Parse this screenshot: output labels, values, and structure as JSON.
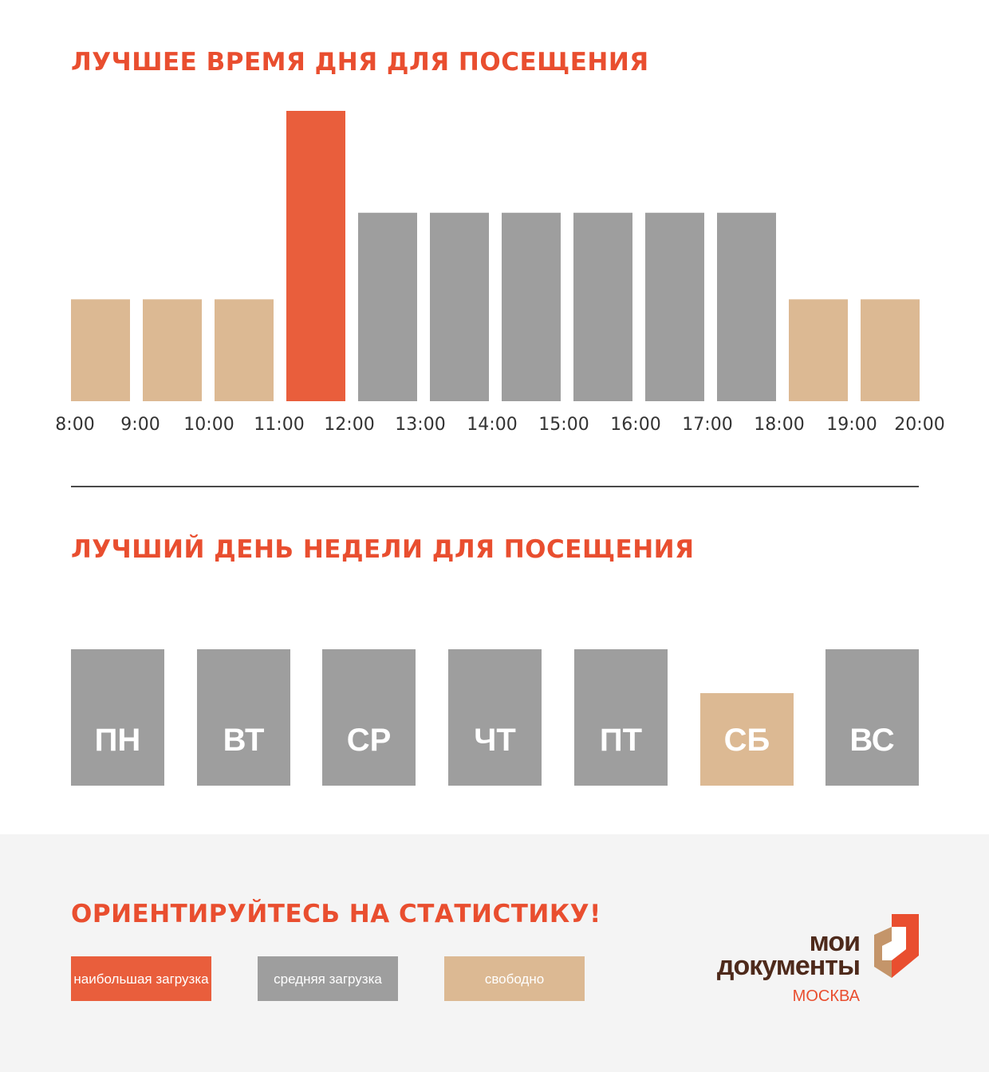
{
  "colors": {
    "accent": "#e94e2f",
    "high": "#e95e3c",
    "medium": "#9e9e9e",
    "free": "#dcb993",
    "logo_brown": "#4e2a1b",
    "logo_tan": "#c4956a"
  },
  "sections": {
    "time_title": "ЛУЧШЕЕ ВРЕМЯ ДНЯ ДЛЯ ПОСЕЩЕНИЯ",
    "day_title": "ЛУЧШИЙ ДЕНЬ НЕДЕЛИ ДЛЯ ПОСЕЩЕНИЯ",
    "footer_title": "ОРИЕНТИРУЙТЕСЬ НА СТАТИСТИКУ!"
  },
  "chart_data": [
    {
      "type": "bar",
      "title": "ЛУЧШЕЕ ВРЕМЯ ДНЯ ДЛЯ ПОСЕЩЕНИЯ",
      "x_ticks": [
        "8:00",
        "9:00",
        "10:00",
        "11:00",
        "12:00",
        "13:00",
        "14:00",
        "15:00",
        "16:00",
        "17:00",
        "18:00",
        "19:00",
        "20:00"
      ],
      "intervals": [
        "8:00–9:00",
        "9:00–10:00",
        "10:00–11:00",
        "11:00–12:00",
        "12:00–13:00",
        "13:00–14:00",
        "14:00–15:00",
        "15:00–16:00",
        "16:00–17:00",
        "17:00–18:00",
        "18:00–19:00",
        "19:00–20:00"
      ],
      "values": [
        1,
        1,
        1,
        2.85,
        1.85,
        1.85,
        1.85,
        1.85,
        1.85,
        1.85,
        1,
        1
      ],
      "load": [
        "free",
        "free",
        "free",
        "high",
        "medium",
        "medium",
        "medium",
        "medium",
        "medium",
        "medium",
        "free",
        "free"
      ],
      "ylim": [
        0,
        2.85
      ],
      "grid": false
    },
    {
      "type": "bar",
      "title": "ЛУЧШИЙ ДЕНЬ НЕДЕЛИ ДЛЯ ПОСЕЩЕНИЯ",
      "categories": [
        "ПН",
        "ВТ",
        "СР",
        "ЧТ",
        "ПТ",
        "СБ",
        "ВС"
      ],
      "values": [
        1,
        1,
        1,
        1,
        1,
        0.68,
        1
      ],
      "load": [
        "medium",
        "medium",
        "medium",
        "medium",
        "medium",
        "free",
        "medium"
      ],
      "ylim": [
        0,
        1
      ],
      "grid": false
    }
  ],
  "legend": {
    "high": "наибольшая загрузка",
    "medium": "средняя загрузка",
    "free": "свободно"
  },
  "logo": {
    "line1": "мои",
    "line2": "документы",
    "city": "МОСКВА"
  }
}
